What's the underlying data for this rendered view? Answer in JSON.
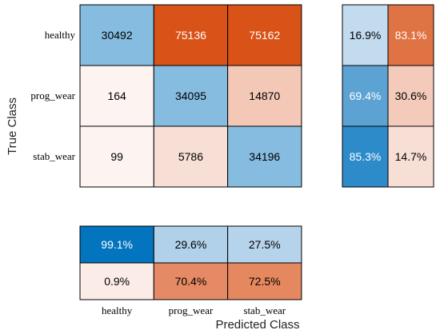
{
  "chart_data": {
    "type": "heatmap",
    "ylabel": "True Class",
    "xlabel": "Predicted Class",
    "row_labels": [
      "healthy",
      "prog_wear",
      "stab_wear"
    ],
    "col_labels": [
      "healthy",
      "prog_wear",
      "stab_wear"
    ],
    "matrix": [
      [
        30492,
        75136,
        75162
      ],
      [
        164,
        34095,
        14870
      ],
      [
        99,
        5786,
        34196
      ]
    ],
    "row_summary": [
      [
        "16.9%",
        "83.1%"
      ],
      [
        "69.4%",
        "30.6%"
      ],
      [
        "85.3%",
        "14.7%"
      ]
    ],
    "column_summary": [
      [
        "99.1%",
        "29.6%",
        "27.5%"
      ],
      [
        "0.9%",
        "70.4%",
        "72.5%"
      ]
    ],
    "colors": {
      "diag_light": "#86bce0",
      "off_max": "#d95218",
      "off_min": "#fdf4f2",
      "blue_light": "#cfe1f2",
      "blue_dark": "#0072bd",
      "orange_dark": "#d95218",
      "orange_light": "#fbece7"
    }
  }
}
